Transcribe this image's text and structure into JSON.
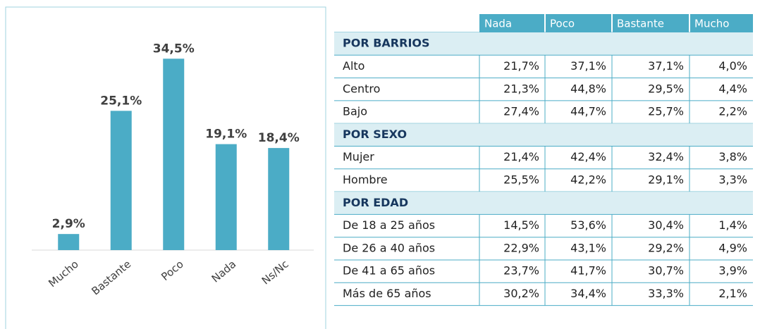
{
  "chart_data": {
    "type": "bar",
    "categories": [
      "Mucho",
      "Bastante",
      "Poco",
      "Nada",
      "Ns/Nc"
    ],
    "values": [
      2.9,
      25.1,
      34.5,
      19.1,
      18.4
    ],
    "value_labels": [
      "2,9%",
      "25,1%",
      "34,5%",
      "19,1%",
      "18,4%"
    ],
    "color": "#4bacc6",
    "ylim": [
      0,
      40
    ]
  },
  "table": {
    "columns": [
      "Nada",
      "Poco",
      "Bastante",
      "Mucho"
    ],
    "sections": [
      {
        "title": "POR BARRIOS",
        "rows": [
          {
            "label": "Alto",
            "cells": [
              "21,7%",
              "37,1%",
              "37,1%",
              "4,0%"
            ]
          },
          {
            "label": "Centro",
            "cells": [
              "21,3%",
              "44,8%",
              "29,5%",
              "4,4%"
            ]
          },
          {
            "label": "Bajo",
            "cells": [
              "27,4%",
              "44,7%",
              "25,7%",
              "2,2%"
            ]
          }
        ]
      },
      {
        "title": "POR SEXO",
        "rows": [
          {
            "label": "Mujer",
            "cells": [
              "21,4%",
              "42,4%",
              "32,4%",
              "3,8%"
            ]
          },
          {
            "label": "Hombre",
            "cells": [
              "25,5%",
              "42,2%",
              "29,1%",
              "3,3%"
            ]
          }
        ]
      },
      {
        "title": "POR EDAD",
        "rows": [
          {
            "label": "De 18 a 25 años",
            "cells": [
              "14,5%",
              "53,6%",
              "30,4%",
              "1,4%"
            ]
          },
          {
            "label": "De 26 a 40 años",
            "cells": [
              "22,9%",
              "43,1%",
              "29,2%",
              "4,9%"
            ]
          },
          {
            "label": "De 41 a 65 años",
            "cells": [
              "23,7%",
              "41,7%",
              "30,7%",
              "3,9%"
            ]
          },
          {
            "label": "Más de 65 años",
            "cells": [
              "30,2%",
              "34,4%",
              "33,3%",
              "2,1%"
            ]
          }
        ]
      }
    ]
  }
}
